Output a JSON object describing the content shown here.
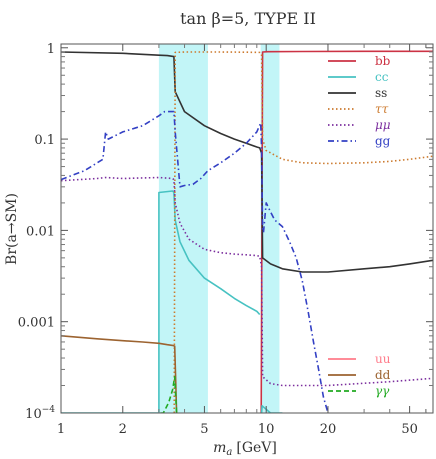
{
  "chart_data": {
    "type": "line",
    "title": "tan β=5, TYPE II",
    "xlabel": "m",
    "xlabel_sub": "a",
    "xlabel_unit": "[GeV]",
    "ylabel": "Br(a→SM)",
    "x_scale": "log",
    "y_scale": "log",
    "xlim": [
      1,
      65
    ],
    "ylim": [
      0.0001,
      1.1
    ],
    "grid": false,
    "x_ticks": [
      {
        "value": 1,
        "label": "1"
      },
      {
        "value": 2,
        "label": "2"
      },
      {
        "value": 5,
        "label": "5"
      },
      {
        "value": 10,
        "label": "10"
      },
      {
        "value": 20,
        "label": "20"
      },
      {
        "value": 50,
        "label": "50"
      }
    ],
    "y_ticks": [
      {
        "value": 0.0001,
        "label": "10",
        "sup": "−4"
      },
      {
        "value": 0.001,
        "label": "0.001"
      },
      {
        "value": 0.01,
        "label": "0.01"
      },
      {
        "value": 0.1,
        "label": "0.1"
      },
      {
        "value": 1,
        "label": "1"
      }
    ],
    "shaded_bands": [
      {
        "x": [
          3.0,
          5.2
        ],
        "color": "#c2f5f7"
      },
      {
        "x": [
          9.4,
          11.6
        ],
        "color": "#c2f5f7"
      }
    ],
    "legend_top": {
      "placement": "top-right",
      "entries": [
        {
          "label": "bb",
          "color": "#cc3344",
          "dash": "solid"
        },
        {
          "label": "cc",
          "color": "#47c2c2",
          "dash": "solid"
        },
        {
          "label": "ss",
          "color": "#333333",
          "dash": "solid"
        },
        {
          "label": "ττ",
          "color": "#cc7a2e",
          "dash": "dot"
        },
        {
          "label": "μμ",
          "color": "#7b2e9e",
          "dash": "dot"
        },
        {
          "label": "gg",
          "color": "#3340c4",
          "dash": "dashdot"
        }
      ]
    },
    "legend_bottom": {
      "placement": "bottom-right",
      "entries": [
        {
          "label": "uu",
          "color": "#ff7b8a",
          "dash": "solid"
        },
        {
          "label": "dd",
          "color": "#9c6330",
          "dash": "solid"
        },
        {
          "label": "γγ",
          "color": "#22aa22",
          "dash": "dash"
        }
      ]
    },
    "series": [
      {
        "name": "bb",
        "color": "#cc3344",
        "dash": "solid",
        "points": [
          [
            9.45,
            0.0001
          ],
          [
            9.6,
            0.9
          ],
          [
            10.2,
            0.905
          ],
          [
            15,
            0.91
          ],
          [
            30,
            0.915
          ],
          [
            65,
            0.915
          ]
        ]
      },
      {
        "name": "cc",
        "color": "#47c2c2",
        "dash": "solid",
        "segments": [
          [
            [
              1.0,
              0.0001
            ],
            [
              3.0,
              0.0001
            ],
            [
              3.0,
              0.026
            ],
            [
              3.5,
              0.027
            ],
            [
              3.55,
              0.026
            ],
            [
              3.6,
              0.013
            ],
            [
              3.8,
              0.0075
            ],
            [
              4.2,
              0.0047
            ],
            [
              5.0,
              0.003
            ],
            [
              6.0,
              0.0023
            ],
            [
              7.0,
              0.0018
            ],
            [
              8.0,
              0.0015
            ],
            [
              9.0,
              0.0013
            ],
            [
              9.3,
              0.0012
            ]
          ],
          [
            [
              9.5,
              0.0001
            ],
            [
              9.55,
              0.00012
            ],
            [
              10.5,
              0.0001
            ],
            [
              11.5,
              0.0001
            ],
            [
              12,
              0.0001
            ]
          ]
        ]
      },
      {
        "name": "ss",
        "color": "#333333",
        "dash": "solid",
        "points": [
          [
            1.0,
            0.9
          ],
          [
            2.0,
            0.87
          ],
          [
            3.0,
            0.83
          ],
          [
            3.3,
            0.82
          ],
          [
            3.55,
            0.8
          ],
          [
            3.6,
            0.33
          ],
          [
            4.0,
            0.2
          ],
          [
            5.0,
            0.14
          ],
          [
            6.0,
            0.115
          ],
          [
            7.0,
            0.1
          ],
          [
            8.0,
            0.09
          ],
          [
            9.0,
            0.082
          ],
          [
            9.3,
            0.08
          ],
          [
            9.5,
            0.07
          ],
          [
            9.6,
            0.005
          ],
          [
            10.5,
            0.0043
          ],
          [
            12.0,
            0.0038
          ],
          [
            15.0,
            0.0035
          ],
          [
            20.0,
            0.0035
          ],
          [
            30.0,
            0.0038
          ],
          [
            40.0,
            0.004
          ],
          [
            50.0,
            0.0043
          ],
          [
            65.0,
            0.0047
          ]
        ]
      },
      {
        "name": "ττ",
        "color": "#cc7a2e",
        "dash": "dot",
        "points": [
          [
            3.56,
            0.0001
          ],
          [
            3.6,
            0.89
          ],
          [
            4.0,
            0.9
          ],
          [
            6.0,
            0.9
          ],
          [
            8.0,
            0.895
          ],
          [
            9.3,
            0.89
          ],
          [
            9.5,
            0.85
          ],
          [
            9.6,
            0.1
          ],
          [
            10.0,
            0.075
          ],
          [
            12.0,
            0.06
          ],
          [
            15.0,
            0.055
          ],
          [
            20.0,
            0.054
          ],
          [
            30.0,
            0.055
          ],
          [
            40.0,
            0.057
          ],
          [
            50.0,
            0.06
          ],
          [
            65.0,
            0.065
          ]
        ]
      },
      {
        "name": "μμ",
        "color": "#7b2e9e",
        "dash": "dot",
        "points": [
          [
            1.0,
            0.035
          ],
          [
            1.5,
            0.037
          ],
          [
            1.65,
            0.038
          ],
          [
            2.0,
            0.037
          ],
          [
            3.0,
            0.038
          ],
          [
            3.5,
            0.037
          ],
          [
            3.55,
            0.036
          ],
          [
            3.6,
            0.02
          ],
          [
            3.8,
            0.012
          ],
          [
            4.2,
            0.008
          ],
          [
            5.0,
            0.0062
          ],
          [
            6.0,
            0.0057
          ],
          [
            7.0,
            0.0055
          ],
          [
            8.0,
            0.0054
          ],
          [
            9.0,
            0.0053
          ],
          [
            9.3,
            0.0052
          ],
          [
            9.5,
            0.004
          ],
          [
            9.6,
            0.00025
          ],
          [
            10.5,
            0.00021
          ],
          [
            12.0,
            0.0002
          ],
          [
            20.0,
            0.0002
          ],
          [
            40.0,
            0.00022
          ],
          [
            65.0,
            0.00024
          ]
        ]
      },
      {
        "name": "gg",
        "color": "#3340c4",
        "dash": "dashdot",
        "points": [
          [
            1.0,
            0.036
          ],
          [
            1.3,
            0.045
          ],
          [
            1.6,
            0.06
          ],
          [
            1.65,
            0.12
          ],
          [
            1.7,
            0.1
          ],
          [
            2.0,
            0.12
          ],
          [
            2.5,
            0.14
          ],
          [
            3.0,
            0.18
          ],
          [
            3.2,
            0.2
          ],
          [
            3.55,
            0.2
          ],
          [
            3.6,
            0.12
          ],
          [
            3.8,
            0.03
          ],
          [
            4.0,
            0.031
          ],
          [
            4.4,
            0.032
          ],
          [
            4.8,
            0.037
          ],
          [
            5.2,
            0.045
          ],
          [
            6.0,
            0.055
          ],
          [
            7.0,
            0.07
          ],
          [
            8.0,
            0.09
          ],
          [
            9.0,
            0.12
          ],
          [
            9.4,
            0.15
          ],
          [
            9.5,
            0.08
          ],
          [
            9.6,
            0.01
          ],
          [
            9.7,
            0.0095
          ],
          [
            10.0,
            0.02
          ],
          [
            10.5,
            0.016
          ],
          [
            11.0,
            0.013
          ],
          [
            12.0,
            0.011
          ],
          [
            13.0,
            0.0075
          ],
          [
            14.0,
            0.005
          ],
          [
            15.0,
            0.0028
          ],
          [
            16.0,
            0.0013
          ],
          [
            17.0,
            0.0006
          ],
          [
            18.0,
            0.0003
          ],
          [
            19.0,
            0.00015
          ],
          [
            20.0,
            0.0001
          ]
        ]
      },
      {
        "name": "dd",
        "color": "#9c6330",
        "dash": "solid",
        "points": [
          [
            1.0,
            0.0007
          ],
          [
            1.5,
            0.00065
          ],
          [
            2.0,
            0.00062
          ],
          [
            2.5,
            0.0006
          ],
          [
            3.0,
            0.00058
          ],
          [
            3.3,
            0.00056
          ],
          [
            3.5,
            0.00055
          ],
          [
            3.58,
            0.00054
          ],
          [
            3.62,
            0.00025
          ],
          [
            3.66,
            0.0001
          ]
        ]
      },
      {
        "name": "γγ",
        "color": "#22aa22",
        "dash": "dash",
        "points": [
          [
            3.05,
            0.0001
          ],
          [
            3.15,
            0.0001
          ],
          [
            3.35,
            0.00013
          ],
          [
            3.5,
            0.00018
          ],
          [
            3.58,
            0.00025
          ],
          [
            3.62,
            0.00016
          ],
          [
            3.66,
            0.0001
          ]
        ]
      }
    ]
  }
}
